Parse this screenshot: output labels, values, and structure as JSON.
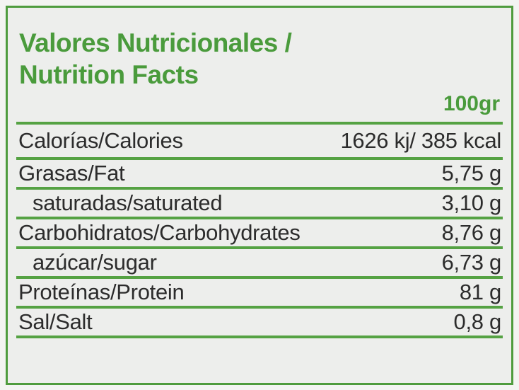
{
  "label": {
    "title_line1": "Valores Nutricionales /",
    "title_line2": "Nutrition Facts",
    "serving": "100gr",
    "rows": [
      {
        "name": "Calorías/Calories",
        "value": "1626 kj/ 385 kcal",
        "indent": false
      },
      {
        "name": "Grasas/Fat",
        "value": "5,75 g",
        "indent": false
      },
      {
        "name": "saturadas/saturated",
        "value": "3,10 g",
        "indent": true
      },
      {
        "name": "Carbohidratos/Carbohydrates",
        "value": "8,76 g",
        "indent": false
      },
      {
        "name": "azúcar/sugar",
        "value": "6,73 g",
        "indent": true
      },
      {
        "name": "Proteínas/Protein",
        "value": "81 g",
        "indent": false
      },
      {
        "name": "Sal/Salt",
        "value": "0,8 g",
        "indent": false
      }
    ],
    "colors": {
      "accent_green": "#4f9c3e",
      "line_green": "#55a243",
      "text_dark": "#2c2c2c",
      "panel_background": "#edeeec",
      "page_background": "#f3f4f2"
    }
  }
}
